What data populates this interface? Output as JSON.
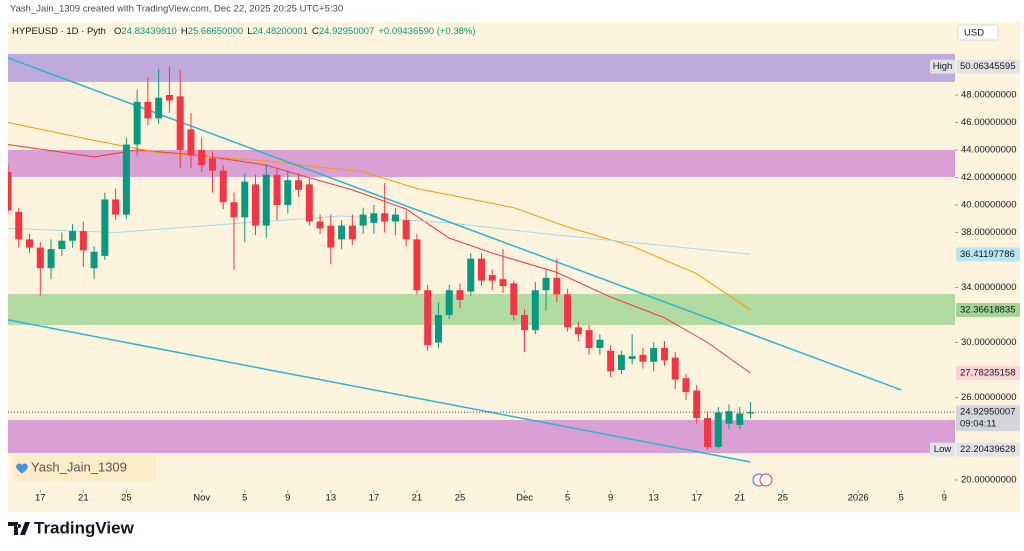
{
  "header": {
    "credit": "Yash_Jain_1309 created with TradingView.com, Dec 22, 2025 20:25 UTC+5:30",
    "currency": "USD",
    "watermark": "Yash_Jain_1309",
    "brand": "TradingView"
  },
  "chart_data": {
    "type": "candlestick",
    "legend": {
      "symbol": "HYPEUSD · 1D · Pyth",
      "fields": [
        {
          "key": "O",
          "value": "24.83439810"
        },
        {
          "key": "H",
          "value": "25.66650000"
        },
        {
          "key": "L",
          "value": "24.48200001"
        },
        {
          "key": "C",
          "value": "24.92950007"
        }
      ],
      "change": "+0.09436590 (+0.38%)"
    },
    "xlim": [
      "2025-10-14",
      "2026-01-10"
    ],
    "xticks": [
      {
        "value": "2025-10-17",
        "label": "17"
      },
      {
        "value": "2025-10-21",
        "label": "21"
      },
      {
        "value": "2025-10-25",
        "label": "25"
      },
      {
        "value": "2025-11-01",
        "label": "Nov"
      },
      {
        "value": "2025-11-05",
        "label": "5"
      },
      {
        "value": "2025-11-09",
        "label": "9"
      },
      {
        "value": "2025-11-13",
        "label": "13"
      },
      {
        "value": "2025-11-17",
        "label": "17"
      },
      {
        "value": "2025-11-21",
        "label": "21"
      },
      {
        "value": "2025-11-25",
        "label": "25"
      },
      {
        "value": "2025-12-01",
        "label": "Dec"
      },
      {
        "value": "2025-12-05",
        "label": "5"
      },
      {
        "value": "2025-12-09",
        "label": "9"
      },
      {
        "value": "2025-12-13",
        "label": "13"
      },
      {
        "value": "2025-12-17",
        "label": "17"
      },
      {
        "value": "2025-12-21",
        "label": "21"
      },
      {
        "value": "2025-12-25",
        "label": "25"
      },
      {
        "value": "2026-01-01",
        "label": "2026"
      },
      {
        "value": "2026-01-05",
        "label": "5"
      },
      {
        "value": "2026-01-09",
        "label": "9"
      }
    ],
    "ylim": [
      19.27,
      53.31
    ],
    "yticks": [
      {
        "value": 20,
        "label": "20.00000000"
      },
      {
        "value": 26,
        "label": "26.00000000"
      },
      {
        "value": 30,
        "label": "30.00000000"
      },
      {
        "value": 34,
        "label": "34.00000000"
      },
      {
        "value": 38,
        "label": "38.00000000"
      },
      {
        "value": 40,
        "label": "40.00000000"
      },
      {
        "value": 42,
        "label": "42.00000000"
      },
      {
        "value": 44,
        "label": "44.00000000"
      },
      {
        "value": 46,
        "label": "46.00000000"
      },
      {
        "value": 48,
        "label": "48.00000000"
      }
    ],
    "up_color": "#089981",
    "down_color": "#f23645",
    "candles": {
      "x": [
        "2025-10-14",
        "2025-10-15",
        "2025-10-16",
        "2025-10-17",
        "2025-10-18",
        "2025-10-19",
        "2025-10-20",
        "2025-10-21",
        "2025-10-22",
        "2025-10-23",
        "2025-10-24",
        "2025-10-25",
        "2025-10-26",
        "2025-10-27",
        "2025-10-28",
        "2025-10-29",
        "2025-10-30",
        "2025-10-31",
        "2025-11-01",
        "2025-11-02",
        "2025-11-03",
        "2025-11-04",
        "2025-11-05",
        "2025-11-06",
        "2025-11-07",
        "2025-11-08",
        "2025-11-09",
        "2025-11-10",
        "2025-11-11",
        "2025-11-12",
        "2025-11-13",
        "2025-11-14",
        "2025-11-15",
        "2025-11-16",
        "2025-11-17",
        "2025-11-18",
        "2025-11-19",
        "2025-11-20",
        "2025-11-21",
        "2025-11-22",
        "2025-11-23",
        "2025-11-24",
        "2025-11-25",
        "2025-11-26",
        "2025-11-27",
        "2025-11-28",
        "2025-11-29",
        "2025-11-30",
        "2025-12-01",
        "2025-12-02",
        "2025-12-03",
        "2025-12-04",
        "2025-12-05",
        "2025-12-06",
        "2025-12-07",
        "2025-12-08",
        "2025-12-09",
        "2025-12-10",
        "2025-12-11",
        "2025-12-12",
        "2025-12-13",
        "2025-12-14",
        "2025-12-15",
        "2025-12-16",
        "2025-12-17",
        "2025-12-18",
        "2025-12-19",
        "2025-12-20",
        "2025-12-21",
        "2025-12-22"
      ],
      "open": [
        42.4,
        39.5,
        37.5,
        36.9,
        35.4,
        36.8,
        37.4,
        38.1,
        35.4,
        36.3,
        40.4,
        39.3,
        44.4,
        47.5,
        46.3,
        48.0,
        47.9,
        45.5,
        44.0,
        43.4,
        42.5,
        40.2,
        39.1,
        41.5,
        38.5,
        42.2,
        40.0,
        41.8,
        41.5,
        38.8,
        38.5,
        37.5,
        38.5,
        38.5,
        38.7,
        39.4,
        38.8,
        38.9,
        37.5,
        33.8,
        30.0,
        32.0,
        33.8,
        33.7,
        36.1,
        34.9,
        34.6,
        34.3,
        32.0,
        30.9,
        33.8,
        34.7,
        33.5,
        31.1,
        30.9,
        29.6,
        29.4,
        28.0,
        28.8,
        29.1,
        28.6,
        29.6,
        28.9,
        27.4,
        26.5,
        24.5,
        22.4,
        24.1,
        24.0,
        24.8343981
      ],
      "high": [
        42.9,
        39.8,
        37.9,
        37.3,
        37.5,
        38.0,
        38.6,
        38.8,
        37.0,
        40.9,
        41.2,
        44.9,
        48.4,
        49.3,
        49.9,
        50.06345595,
        49.8,
        46.7,
        44.9,
        43.9,
        42.9,
        40.9,
        42.3,
        42.2,
        42.9,
        42.7,
        42.5,
        42.3,
        42.0,
        39.3,
        39.3,
        38.9,
        39.3,
        39.8,
        40.0,
        41.6,
        39.8,
        39.6,
        37.9,
        34.2,
        32.9,
        34.2,
        34.3,
        36.5,
        36.5,
        35.3,
        36.8,
        34.5,
        32.4,
        34.4,
        35.3,
        36.1,
        33.9,
        31.5,
        31.3,
        30.6,
        29.8,
        29.4,
        30.6,
        29.6,
        30.0,
        30.1,
        29.3,
        27.7,
        26.9,
        25.0,
        25.3,
        25.5,
        25.3,
        25.6665
      ],
      "low": [
        39.4,
        36.9,
        36.5,
        33.4,
        34.6,
        36.3,
        36.9,
        35.5,
        34.6,
        36.0,
        38.9,
        39.0,
        43.6,
        45.8,
        45.9,
        46.7,
        42.7,
        42.7,
        42.4,
        40.9,
        39.7,
        35.3,
        37.3,
        37.8,
        37.6,
        38.9,
        39.4,
        40.6,
        38.5,
        37.9,
        35.7,
        36.8,
        37.1,
        37.9,
        37.9,
        38.0,
        37.8,
        37.0,
        33.5,
        29.4,
        29.6,
        31.7,
        32.5,
        33.4,
        34.1,
        33.8,
        33.6,
        31.6,
        29.3,
        30.6,
        32.3,
        32.9,
        30.8,
        30.1,
        29.1,
        29.1,
        27.5,
        27.7,
        28.4,
        28.1,
        27.9,
        28.3,
        26.6,
        25.8,
        24.1,
        22.20439628,
        22.3,
        23.7,
        23.7,
        24.48200001
      ],
      "close": [
        39.6,
        37.5,
        36.9,
        35.4,
        36.8,
        37.4,
        38.1,
        36.7,
        36.6,
        40.4,
        39.3,
        44.4,
        47.5,
        46.3,
        47.8,
        47.6,
        44.0,
        43.6,
        42.9,
        42.5,
        40.2,
        39.1,
        41.7,
        38.5,
        42.2,
        40.0,
        41.8,
        41.1,
        38.8,
        38.3,
        36.9,
        38.5,
        37.5,
        39.3,
        39.4,
        38.8,
        39.3,
        37.5,
        33.8,
        29.8,
        32.0,
        33.8,
        33.1,
        36.1,
        34.5,
        34.5,
        34.1,
        32.0,
        30.9,
        33.8,
        34.7,
        33.5,
        31.1,
        30.6,
        29.6,
        30.2,
        27.9,
        29.1,
        29.0,
        28.6,
        29.6,
        28.7,
        27.3,
        26.4,
        24.5,
        22.4,
        24.9,
        25.0,
        24.84,
        24.92950007
      ]
    },
    "series": [
      {
        "color": "#f23645",
        "x": [
          "2025-10-14",
          "2025-10-22",
          "2025-10-26",
          "2025-11-01",
          "2025-11-07",
          "2025-11-10",
          "2025-11-15",
          "2025-11-20",
          "2025-11-24",
          "2025-11-28",
          "2025-12-04",
          "2025-12-09",
          "2025-12-14",
          "2025-12-18",
          "2025-12-22"
        ],
        "values": [
          44.4,
          43.5,
          44.0,
          43.6,
          42.9,
          42.2,
          41.1,
          39.7,
          37.6,
          36.5,
          35.1,
          33.3,
          31.8,
          30.0,
          27.78235158
        ]
      },
      {
        "color": "#ff9800",
        "x": [
          "2025-10-14",
          "2025-10-22",
          "2025-10-28",
          "2025-11-07",
          "2025-11-16",
          "2025-11-21",
          "2025-11-30",
          "2025-12-05",
          "2025-12-11",
          "2025-12-17",
          "2025-12-22"
        ],
        "values": [
          46.0,
          44.7,
          43.8,
          43.2,
          42.4,
          41.2,
          39.8,
          38.4,
          37.0,
          35.0,
          32.36618835
        ]
      },
      {
        "color": "#a6d8e6",
        "x": [
          "2025-10-14",
          "2025-10-24",
          "2025-11-05",
          "2025-11-14",
          "2025-11-24",
          "2025-12-03",
          "2025-12-12",
          "2025-12-22"
        ],
        "values": [
          38.3,
          38.0,
          38.7,
          39.2,
          38.7,
          37.9,
          37.2,
          36.41197786
        ]
      }
    ],
    "zones": [
      {
        "from": 48.95,
        "to": 50.99,
        "color": "#b39ddb"
      },
      {
        "from": 42.04,
        "to": 44.0,
        "color": "#d391d2"
      },
      {
        "from": 31.27,
        "to": 33.53,
        "color": "#a3d696"
      },
      {
        "from": 21.96,
        "to": 24.36,
        "color": "#d391d2"
      }
    ],
    "trendlines": [
      {
        "x": [
          "2025-10-14",
          "2026-01-05"
        ],
        "values": [
          50.69,
          26.55
        ],
        "color": "#26b8d4"
      },
      {
        "x": [
          "2025-10-14",
          "2025-12-22"
        ],
        "values": [
          31.64,
          21.31
        ],
        "color": "#26b8d4"
      }
    ],
    "price_labels": [
      {
        "value": 50.06345595,
        "label": "50.06345595",
        "tag": "High",
        "color": "#e3e3e3",
        "text_color": "#131722"
      },
      {
        "value": 36.41197786,
        "label": "36.41197786",
        "color": "#b8e6f0",
        "text_color": "#131722"
      },
      {
        "value": 32.36618835,
        "label": "32.36618835",
        "color": "#a3d696",
        "text_color": "#131722"
      },
      {
        "value": 27.78235158,
        "label": "27.78235158",
        "color": "#fbd3d6",
        "text_color": "#131722"
      },
      {
        "value": 24.92950007,
        "label": "24.92950007",
        "countdown": "09:04:11",
        "color": "#d4d6dc",
        "text_color": "#131722"
      },
      {
        "value": 22.20439628,
        "label": "22.20439628",
        "tag": "Low",
        "color": "#e3e3e3",
        "text_color": "#131722"
      }
    ]
  }
}
